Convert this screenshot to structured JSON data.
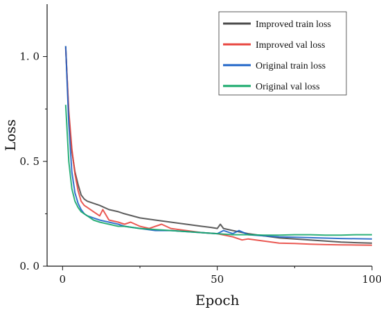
{
  "chart_data": {
    "type": "line",
    "xlabel": "Epoch",
    "ylabel": "Loss",
    "xlim": [
      -5,
      100
    ],
    "ylim": [
      0,
      1.25
    ],
    "xticks": [
      0,
      50,
      100
    ],
    "yticks": [
      0.0,
      0.5,
      1.0
    ],
    "xtick_labels": [
      "0",
      "50",
      "100"
    ],
    "ytick_labels": [
      "0. 0",
      "0. 5",
      "1. 0"
    ],
    "legend_position": "top-right",
    "grid": false,
    "series": [
      {
        "name": "Improved train loss",
        "color": "#4a4a4a",
        "x": [
          1,
          2,
          3,
          4,
          5,
          6,
          7,
          8,
          10,
          12,
          15,
          18,
          20,
          25,
          30,
          35,
          40,
          45,
          48,
          50,
          51,
          52,
          55,
          60,
          65,
          70,
          75,
          80,
          85,
          90,
          95,
          100
        ],
        "y": [
          1.05,
          0.72,
          0.55,
          0.45,
          0.39,
          0.34,
          0.32,
          0.31,
          0.3,
          0.29,
          0.27,
          0.26,
          0.25,
          0.23,
          0.22,
          0.21,
          0.2,
          0.19,
          0.185,
          0.18,
          0.2,
          0.18,
          0.17,
          0.155,
          0.145,
          0.135,
          0.13,
          0.125,
          0.12,
          0.115,
          0.112,
          0.11
        ]
      },
      {
        "name": "Improved val loss",
        "color": "#e8463f",
        "x": [
          1,
          2,
          3,
          4,
          5,
          6,
          7,
          8,
          10,
          12,
          13,
          15,
          18,
          20,
          22,
          25,
          28,
          30,
          32,
          35,
          40,
          45,
          50,
          55,
          58,
          60,
          65,
          70,
          75,
          80,
          85,
          90,
          95,
          100
        ],
        "y": [
          1.04,
          0.74,
          0.56,
          0.44,
          0.36,
          0.31,
          0.29,
          0.28,
          0.26,
          0.24,
          0.27,
          0.22,
          0.21,
          0.2,
          0.21,
          0.19,
          0.18,
          0.19,
          0.2,
          0.18,
          0.17,
          0.16,
          0.155,
          0.14,
          0.125,
          0.13,
          0.12,
          0.11,
          0.108,
          0.105,
          0.103,
          0.102,
          0.101,
          0.1
        ]
      },
      {
        "name": "Original train loss",
        "color": "#1f64c8",
        "x": [
          1,
          2,
          3,
          4,
          5,
          6,
          7,
          8,
          10,
          12,
          15,
          18,
          20,
          25,
          30,
          35,
          40,
          45,
          50,
          52,
          55,
          57,
          60,
          65,
          70,
          75,
          80,
          85,
          90,
          95,
          100
        ],
        "y": [
          1.05,
          0.68,
          0.45,
          0.35,
          0.3,
          0.27,
          0.25,
          0.24,
          0.23,
          0.22,
          0.21,
          0.2,
          0.19,
          0.18,
          0.17,
          0.17,
          0.165,
          0.16,
          0.155,
          0.17,
          0.155,
          0.17,
          0.15,
          0.145,
          0.14,
          0.138,
          0.136,
          0.134,
          0.132,
          0.131,
          0.13
        ]
      },
      {
        "name": "Original val loss",
        "color": "#16a86a",
        "x": [
          1,
          2,
          3,
          4,
          5,
          6,
          7,
          8,
          10,
          12,
          15,
          18,
          20,
          25,
          30,
          35,
          40,
          45,
          50,
          55,
          60,
          65,
          70,
          75,
          80,
          85,
          90,
          95,
          100
        ],
        "y": [
          0.77,
          0.5,
          0.37,
          0.31,
          0.28,
          0.26,
          0.25,
          0.24,
          0.22,
          0.21,
          0.2,
          0.19,
          0.19,
          0.18,
          0.175,
          0.17,
          0.165,
          0.16,
          0.155,
          0.15,
          0.15,
          0.148,
          0.148,
          0.15,
          0.15,
          0.148,
          0.148,
          0.15,
          0.15
        ]
      }
    ]
  }
}
